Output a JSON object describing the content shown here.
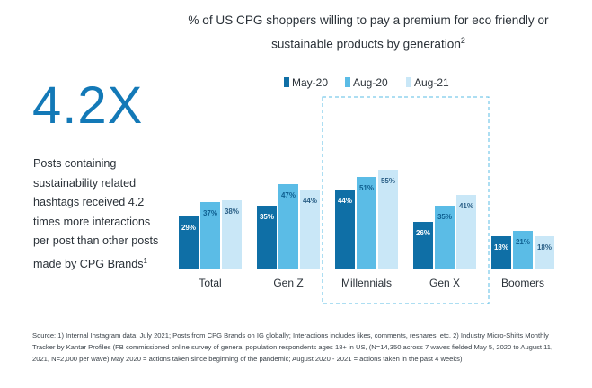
{
  "stat": {
    "value": "4.2X",
    "text": "Posts containing sustainability related hashtags received 4.2 times more interactions per post than other posts made by CPG Brands",
    "footnote_mark": "1"
  },
  "chart_data": {
    "type": "bar",
    "title": "% of US CPG shoppers willing to pay a premium for eco friendly or sustainable products by generation",
    "title_footnote": "2",
    "categories": [
      "Total",
      "Gen Z",
      "Millennials",
      "Gen X",
      "Boomers"
    ],
    "series": [
      {
        "name": "May-20",
        "values": [
          29,
          35,
          44,
          26,
          18
        ],
        "labels": [
          "29%",
          "35%",
          "44%",
          "26%",
          "18%"
        ],
        "color": "#0f6fa6"
      },
      {
        "name": "Aug-20",
        "values": [
          37,
          47,
          51,
          35,
          21
        ],
        "labels": [
          "37%",
          "47%",
          "51%",
          "35%",
          "21%"
        ],
        "color": "#5bbce6"
      },
      {
        "name": "Aug-21",
        "values": [
          38,
          44,
          55,
          41,
          18
        ],
        "labels": [
          "38%",
          "44%",
          "55%",
          "41%",
          "18%"
        ],
        "color": "#c9e7f7"
      }
    ],
    "ylim": [
      0,
      60
    ],
    "grid": false,
    "legend": "top",
    "highlight": [
      "Millennials",
      "Gen X"
    ],
    "highlight_color": "#5bbce6"
  },
  "footnote": "Source:  1) Internal Instagram data; July 2021; Posts from CPG Brands on IG globally; Interactions includes likes, comments, reshares, etc. 2) Industry Micro-Shifts Monthly Tracker by Kantar Profiles (FB commissioned online survey of general population respondents ages 18+ in US, (N=14,350 across 7 waves fielded  May 5, 2020 to August 11, 2021, N=2,000 per wave) May 2020 = actions taken since beginning of the pandemic; August 2020 - 2021 = actions taken in the past 4 weeks)"
}
